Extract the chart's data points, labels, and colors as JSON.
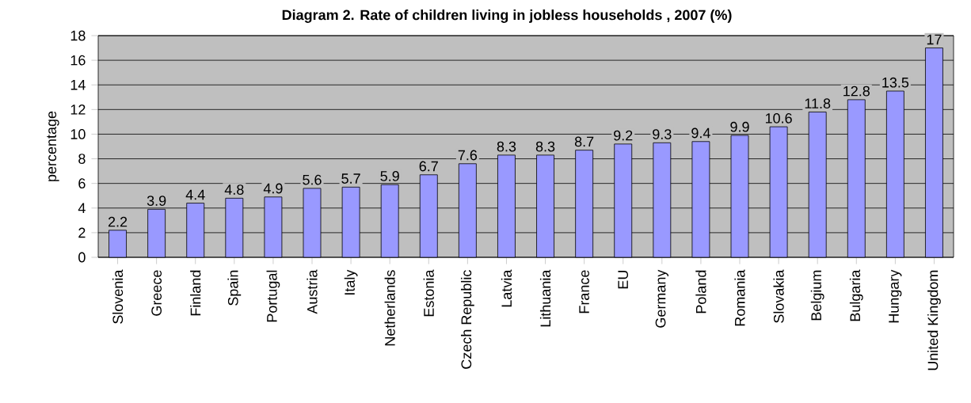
{
  "chart_data": {
    "type": "bar",
    "title": "Diagram 2. Rate of children living in jobless households , 2007 (%)",
    "ylabel": "percentage",
    "categories": [
      "Slovenia",
      "Greece",
      "Finland",
      "Spain",
      "Portugal",
      "Austria",
      "Italy",
      "Netherlands",
      "Estonia",
      "Czech Republic",
      "Latvia",
      "Lithuania",
      "France",
      "EU",
      "Germany",
      "Poland",
      "Romania",
      "Slovakia",
      "Belgium",
      "Bulgaria",
      "Hungary",
      "United Kingdom"
    ],
    "values": [
      2.2,
      3.9,
      4.4,
      4.8,
      4.9,
      5.6,
      5.7,
      5.9,
      6.7,
      7.6,
      8.3,
      8.3,
      8.7,
      9.2,
      9.3,
      9.4,
      9.9,
      10.6,
      11.8,
      12.8,
      13.5,
      17
    ],
    "color": "#9999ff",
    "ylim": [
      0,
      18
    ],
    "yticks": [
      0,
      2,
      4,
      6,
      8,
      10,
      12,
      14,
      16,
      18
    ],
    "grid": "y",
    "data_labels": true
  }
}
